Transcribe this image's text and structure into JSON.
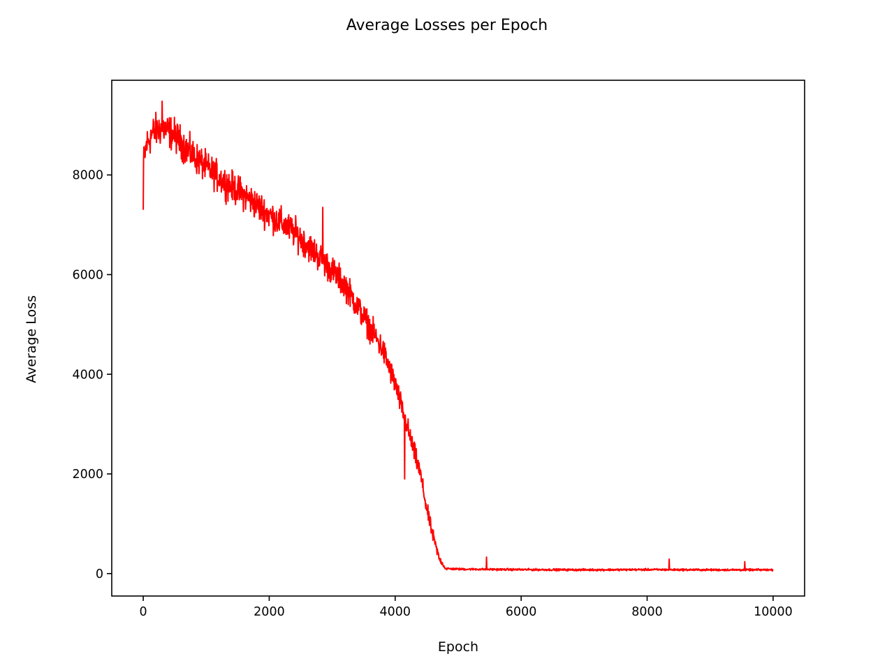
{
  "chart_data": {
    "type": "line",
    "title": "Average Losses per Epoch",
    "xlabel": "Epoch",
    "ylabel": "Average Loss",
    "xlim": [
      -500,
      10500
    ],
    "ylim": [
      -450,
      9900
    ],
    "xticks": [
      0,
      2000,
      4000,
      6000,
      8000,
      10000
    ],
    "xtick_labels": [
      "0",
      "2000",
      "4000",
      "6000",
      "8000",
      "10000"
    ],
    "yticks": [
      0,
      2000,
      4000,
      6000,
      8000
    ],
    "ytick_labels": [
      "0",
      "2000",
      "4000",
      "6000",
      "8000"
    ],
    "grid": false,
    "series": [
      {
        "color": "#ff0000",
        "epochs": [
          0,
          10000
        ],
        "trend": {
          "x": [
            0,
            50,
            150,
            300,
            500,
            700,
            1000,
            1300,
            1600,
            2000,
            2400,
            2800,
            3200,
            3500,
            3800,
            4000,
            4200,
            4400,
            4500,
            4600,
            4700,
            4800,
            5000,
            6000,
            7000,
            8000,
            9000,
            10000
          ],
          "y": [
            8200,
            8600,
            8850,
            8950,
            8800,
            8500,
            8150,
            7850,
            7600,
            7200,
            6850,
            6350,
            5800,
            5150,
            4500,
            3800,
            2900,
            2000,
            1300,
            750,
            300,
            100,
            90,
            80,
            75,
            80,
            75,
            75
          ]
        },
        "noise_amplitude": {
          "x": [
            0,
            300,
            1000,
            2000,
            3000,
            3800,
            4300,
            4600,
            4750,
            4850,
            10000
          ],
          "y": [
            500,
            500,
            450,
            450,
            420,
            380,
            300,
            200,
            60,
            30,
            30
          ]
        },
        "spikes": [
          {
            "x": 0,
            "y": 7300
          },
          {
            "x": 300,
            "y": 9480
          },
          {
            "x": 2850,
            "y": 7350
          },
          {
            "x": 4150,
            "y": 1900
          },
          {
            "x": 5450,
            "y": 330
          },
          {
            "x": 8350,
            "y": 290
          },
          {
            "x": 9550,
            "y": 240
          }
        ]
      }
    ]
  }
}
